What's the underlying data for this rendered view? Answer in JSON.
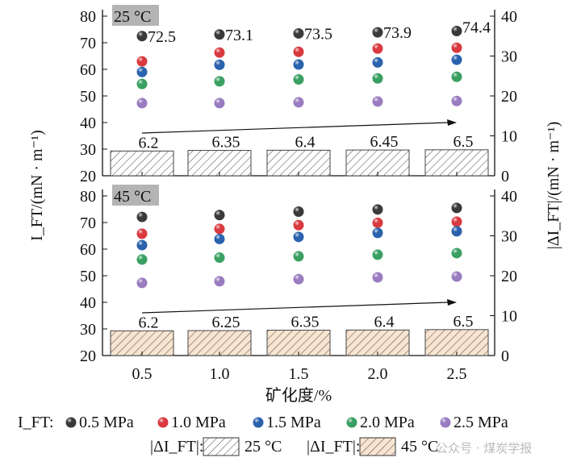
{
  "chart_data": {
    "type": "scatter+bar",
    "categories": [
      "0.5",
      "1.0",
      "1.5",
      "2.0",
      "2.5"
    ],
    "xlabel": "矿化度/%",
    "ylabel_left": "I_FT/(mN · m⁻¹)",
    "ylabel_right": "|ΔI_FT|/(mN · m⁻¹)",
    "ylim_left": [
      20,
      80
    ],
    "yticks_left": [
      "20",
      "30",
      "40",
      "50",
      "60",
      "70",
      "80"
    ],
    "ylim_right": [
      0,
      40
    ],
    "yticks_right": [
      "0",
      "10",
      "20",
      "30",
      "40"
    ],
    "series_names": [
      "0.5 MPa",
      "1.0 MPa",
      "1.5 MPa",
      "2.0 MPa",
      "2.5 MPa"
    ],
    "series_colors": [
      "#3a3a3a",
      "#d93a3f",
      "#2a62ad",
      "#3aa062",
      "#9a7cc0"
    ],
    "panels": [
      {
        "label": "25 °C",
        "bar_fill": "#ffffff",
        "series": [
          {
            "name": "0.5 MPa",
            "values": [
              72.5,
              73.1,
              73.5,
              73.9,
              74.4
            ],
            "labels": [
              "72.5",
              "73.1",
              "73.5",
              "73.9",
              "74.4"
            ]
          },
          {
            "name": "1.0 MPa",
            "values": [
              63.0,
              66.3,
              66.6,
              67.8,
              68.1
            ]
          },
          {
            "name": "1.5 MPa",
            "values": [
              59.0,
              61.7,
              61.8,
              62.6,
              63.6
            ]
          },
          {
            "name": "2.0 MPa",
            "values": [
              54.5,
              55.5,
              56.2,
              56.6,
              57.2
            ]
          },
          {
            "name": "2.5 MPa",
            "values": [
              47.3,
              47.3,
              47.6,
              47.9,
              48.1
            ]
          }
        ],
        "bars": [
          6.2,
          6.35,
          6.4,
          6.45,
          6.5
        ],
        "bar_labels": [
          "6.2",
          "6.35",
          "6.4",
          "6.45",
          "6.5"
        ]
      },
      {
        "label": "45 °C",
        "bar_fill": "#f8e4d0",
        "series": [
          {
            "name": "0.5 MPa",
            "values": [
              72.1,
              72.8,
              74.1,
              74.9,
              75.5
            ]
          },
          {
            "name": "1.0 MPa",
            "values": [
              65.8,
              67.6,
              69.0,
              69.9,
              70.3
            ]
          },
          {
            "name": "1.5 MPa",
            "values": [
              61.5,
              63.8,
              64.6,
              66.1,
              66.7
            ]
          },
          {
            "name": "2.0 MPa",
            "values": [
              56.1,
              56.8,
              57.3,
              57.9,
              58.5
            ]
          },
          {
            "name": "2.5 MPa",
            "values": [
              47.3,
              47.9,
              48.7,
              49.4,
              49.7
            ]
          }
        ],
        "bars": [
          6.2,
          6.25,
          6.35,
          6.4,
          6.5
        ],
        "bar_labels": [
          "6.2",
          "6.25",
          "6.35",
          "6.4",
          "6.5"
        ]
      }
    ],
    "legend": {
      "scatter_prefix": "I_FT:",
      "bar_prefix": "|ΔI_FT|:",
      "bar_entries": [
        "25 °C",
        "45 °C"
      ],
      "placement": "bottom"
    }
  },
  "watermark": "公众号 · 煤炭学报"
}
